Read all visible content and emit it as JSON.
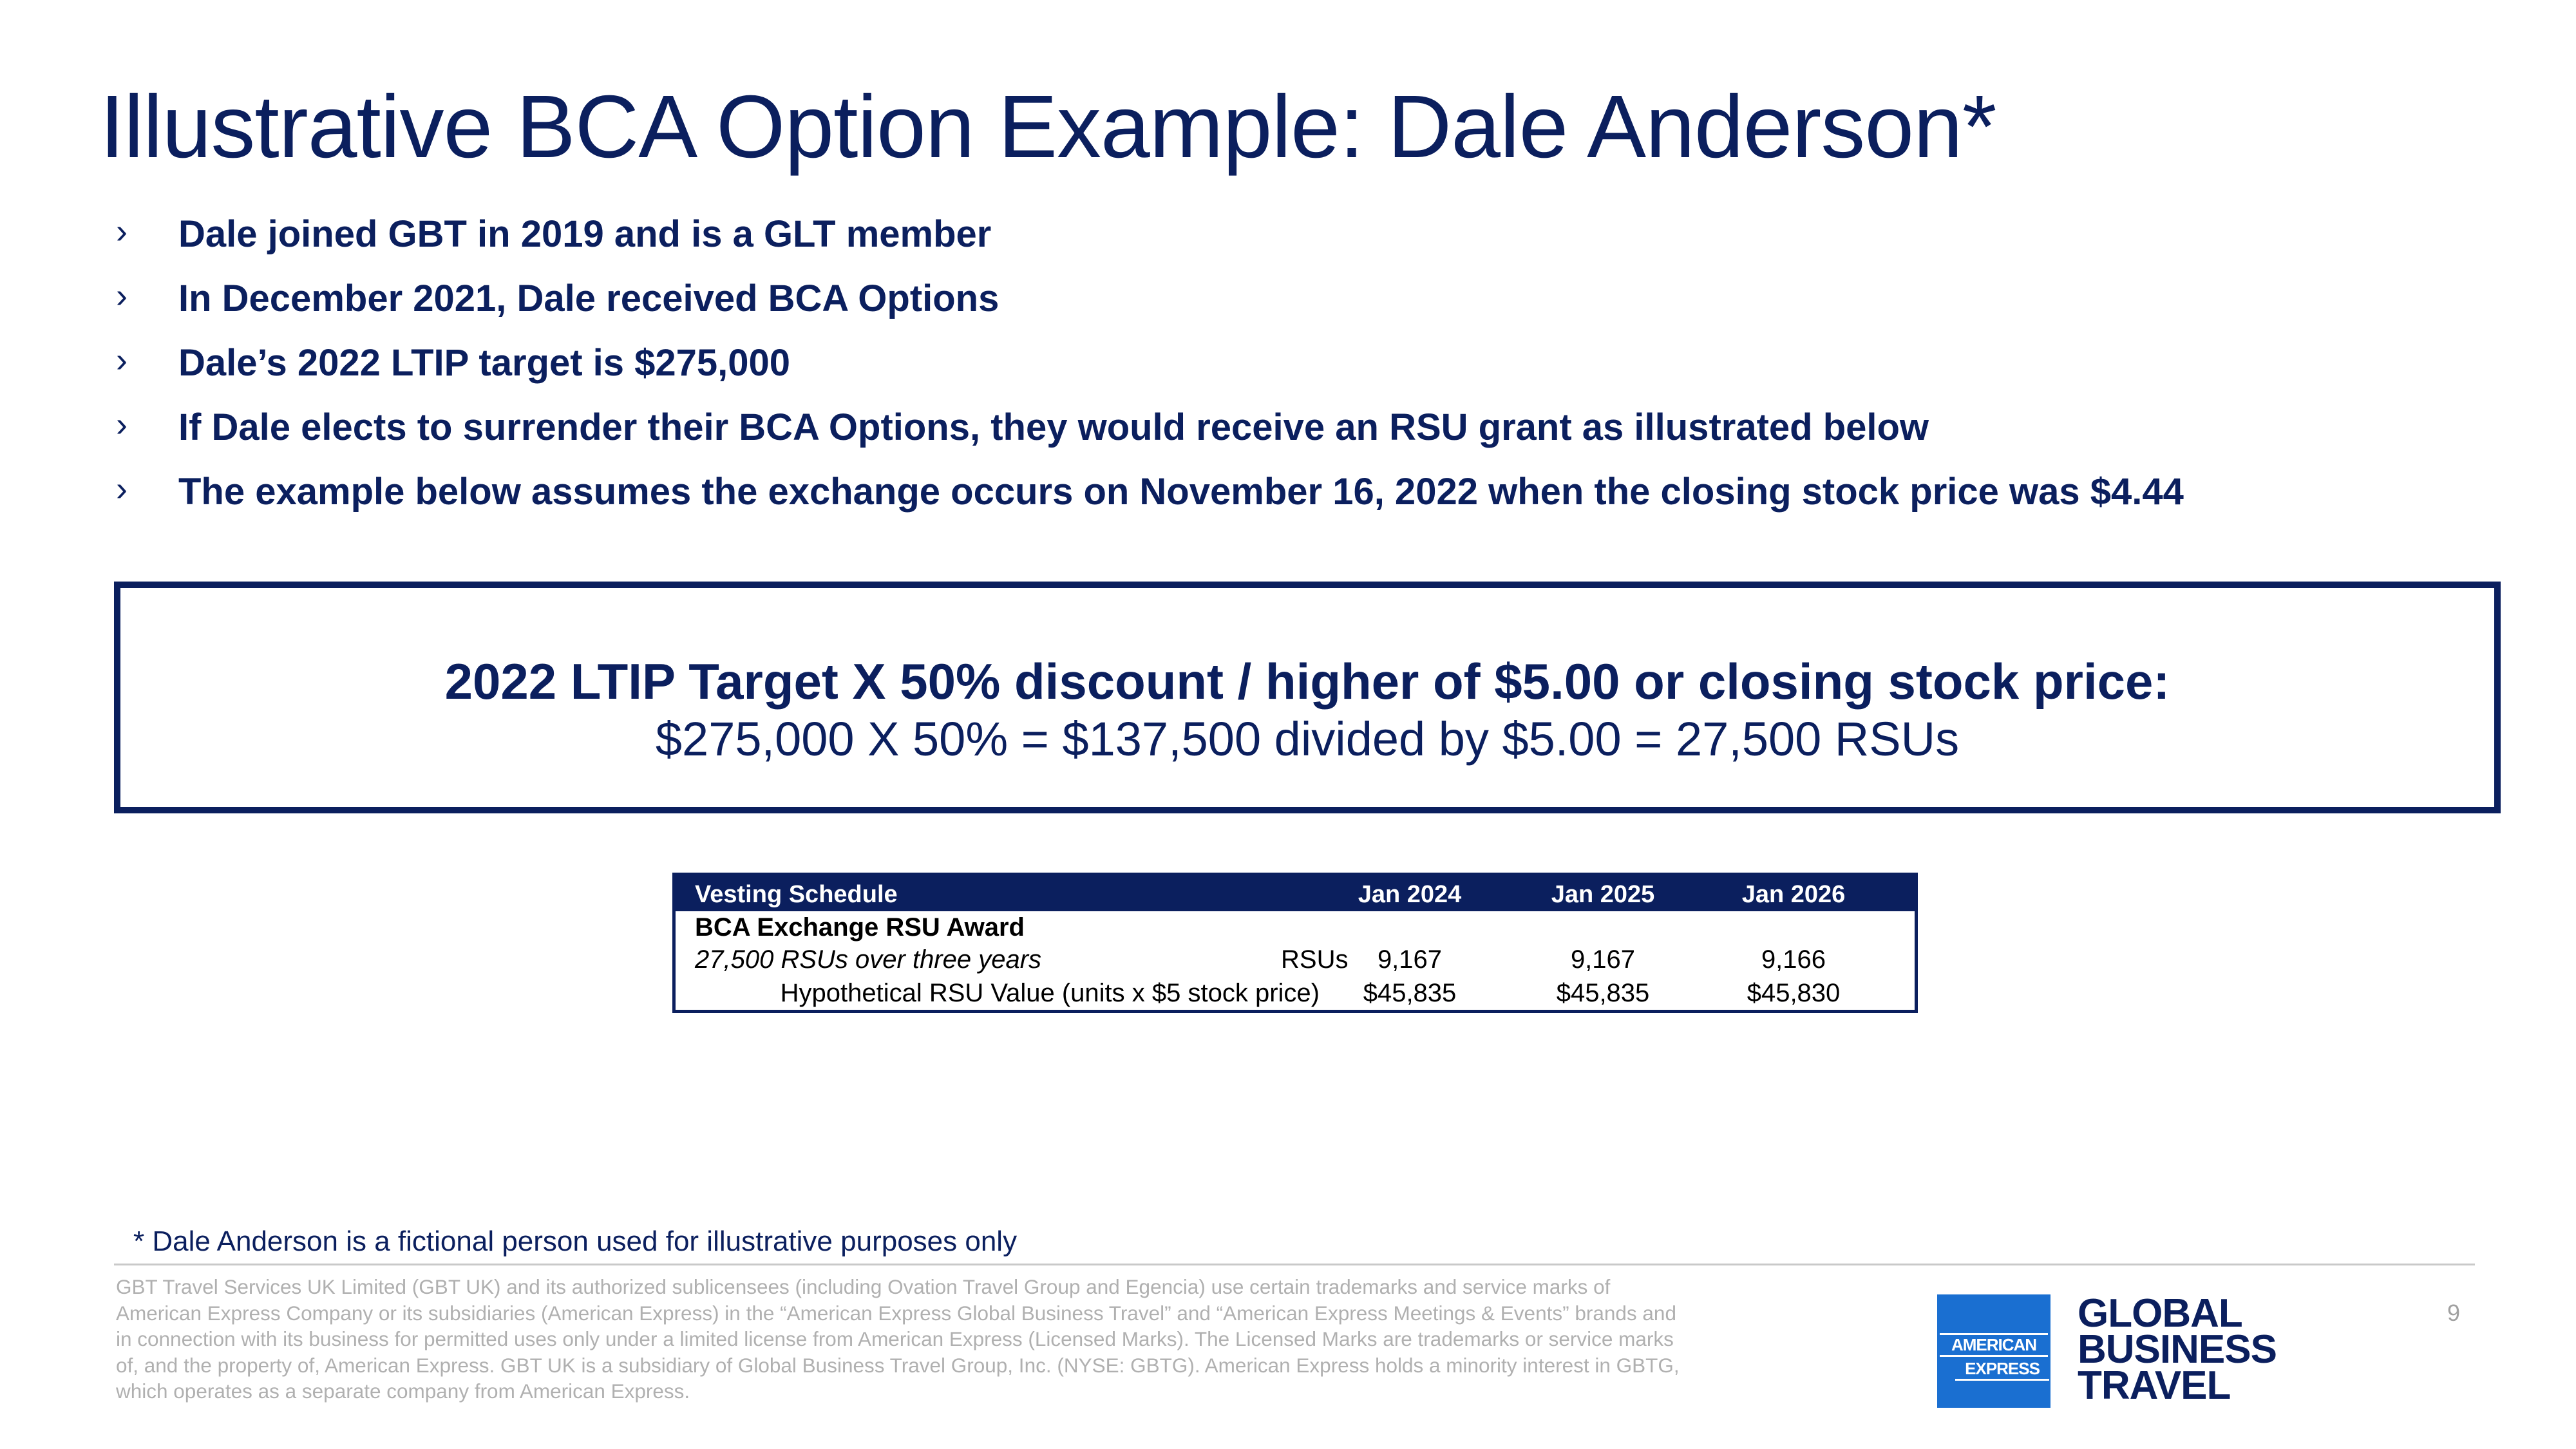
{
  "title": "Illustrative BCA Option Example: Dale Anderson*",
  "bullet_marker": "›",
  "bullets": [
    "Dale joined GBT in 2019 and is a GLT member",
    "In December 2021, Dale received BCA Options",
    "Dale’s 2022 LTIP target is $275,000",
    "If Dale elects to surrender their BCA Options, they would receive an RSU grant as illustrated below",
    "The example below assumes the exchange occurs on November 16, 2022 when the closing stock price was $4.44"
  ],
  "formula": {
    "line1": "2022 LTIP Target X 50% discount / higher of $5.00 or closing stock price:",
    "line2": "$275,000 X 50% = $137,500 divided by $5.00 = 27,500 RSUs"
  },
  "vesting_table": {
    "header": {
      "label": "Vesting Schedule",
      "columns": [
        "Jan 2024",
        "Jan 2025",
        "Jan 2026"
      ]
    },
    "section_title": "BCA Exchange RSU Award",
    "rows": [
      {
        "label": "27,500 RSUs over three years",
        "unit": "RSUs",
        "values": [
          "9,167",
          "9,167",
          "9,166"
        ]
      },
      {
        "label": "Hypothetical RSU Value (units x $5 stock price)",
        "values": [
          "$45,835",
          "$45,835",
          "$45,830"
        ]
      }
    ]
  },
  "footnote": "* Dale Anderson is a fictional person used for illustrative purposes only",
  "legal_lines": [
    "GBT Travel Services UK Limited (GBT UK) and its authorized sublicensees (including Ovation Travel Group and Egencia) use certain trademarks and service marks of",
    "American Express Company or its subsidiaries (American Express) in the “American Express Global Business Travel” and “American Express Meetings & Events” brands and",
    "in connection with its business for permitted uses only under a limited license from American Express (Licensed Marks).  The Licensed Marks are trademarks or service marks",
    "of, and the property of, American Express. GBT UK is a subsidiary of Global Business Travel Group, Inc. (NYSE: GBTG). American Express holds a minority interest in GBTG,",
    "which operates as a separate company from American Express."
  ],
  "page_number": "9",
  "logo": {
    "box_line1": "AMERICAN",
    "box_line2": "EXPRESS",
    "brand_lines": [
      "GLOBAL",
      "BUSINESS",
      "TRAVEL"
    ],
    "box_color": "#1a6fd1"
  },
  "colors": {
    "navy": "#0b1f5e",
    "legal_gray": "#b0b0b0"
  }
}
